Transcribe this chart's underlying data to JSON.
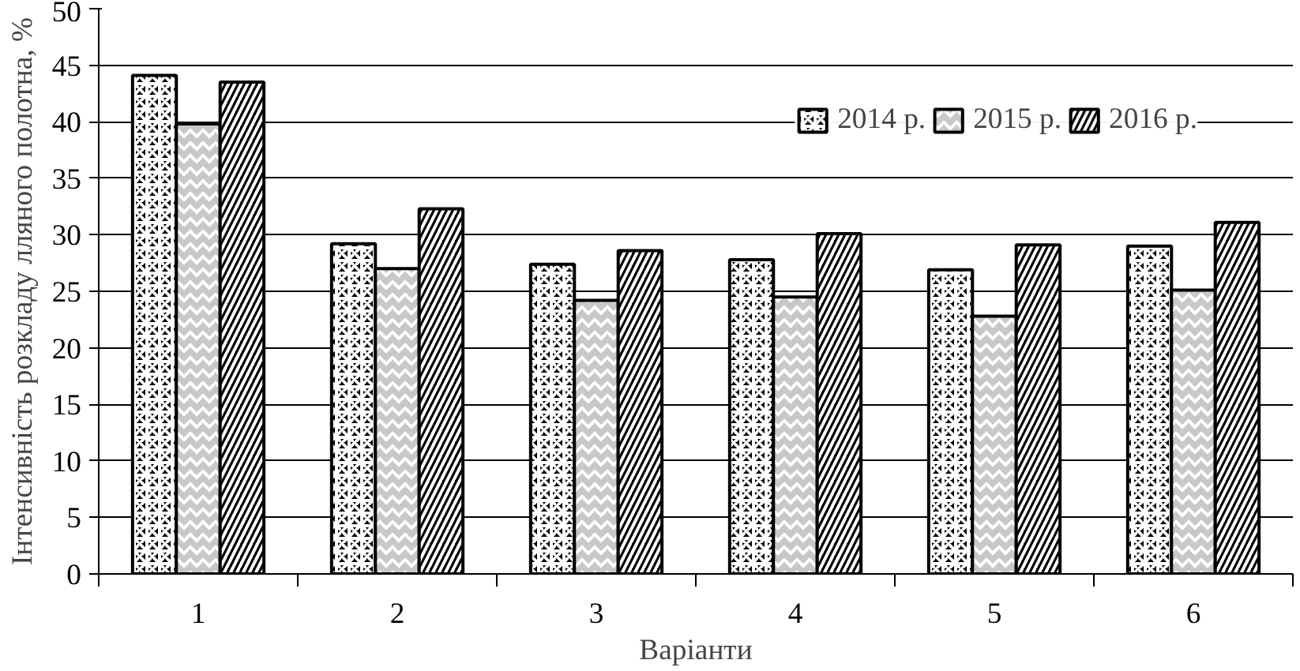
{
  "chart_data": {
    "type": "bar",
    "xlabel": "Варіанти",
    "ylabel": "Інтенсивність розкладу лляного полотна, %",
    "categories": [
      "1",
      "2",
      "3",
      "4",
      "5",
      "6"
    ],
    "series": [
      {
        "name": "2014 р.",
        "color": "#000000",
        "values": [
          44.1,
          29.2,
          27.4,
          27.8,
          26.9,
          29.0
        ]
      },
      {
        "name": "2015 р.",
        "color": "#c8c8c8",
        "values": [
          39.8,
          27.0,
          24.2,
          24.5,
          22.8,
          25.1
        ]
      },
      {
        "name": "2016 р.",
        "color": "#000000",
        "values": [
          43.5,
          32.3,
          28.6,
          30.1,
          29.1,
          31.1
        ]
      }
    ],
    "ylim": [
      0,
      50
    ],
    "yticks": [
      0,
      5,
      10,
      15,
      20,
      25,
      30,
      35,
      40,
      45,
      50
    ],
    "grid": "y",
    "legend": "top right"
  }
}
